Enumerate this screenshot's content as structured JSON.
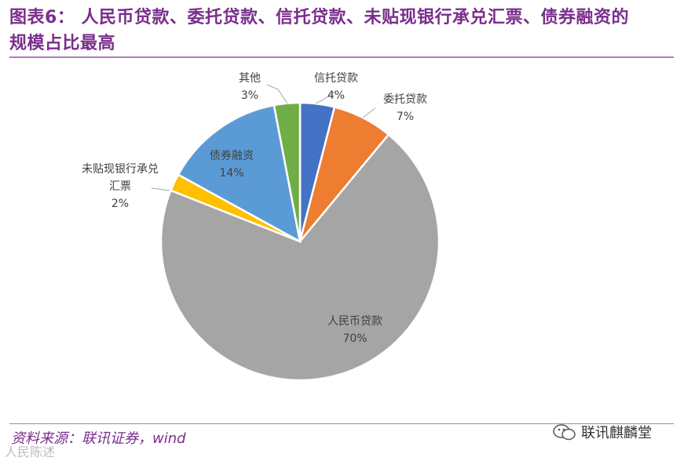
{
  "header": {
    "title_line1": "图表6： 人民币贷款、委托贷款、信托贷款、未贴现银行承兑汇票、债券融资的",
    "title_line2": "规模占比最高"
  },
  "footer": {
    "source": "资料来源：联讯证券，wind",
    "wechat_account": "联讯麒麟堂",
    "watermark": "人民陈述"
  },
  "chart_data": {
    "type": "pie",
    "title": "",
    "start_angle_deg": 0,
    "direction": "clockwise",
    "slices": [
      {
        "name": "信托贷款",
        "value": 4,
        "label": "4%",
        "color": "#4472c4",
        "label_lines": [
          "信托贷款",
          "4%"
        ]
      },
      {
        "name": "委托贷款",
        "value": 7,
        "label": "7%",
        "color": "#ed7d31",
        "label_lines": [
          "委托贷款",
          "7%"
        ]
      },
      {
        "name": "人民币贷款",
        "value": 70,
        "label": "70%",
        "color": "#a5a5a5",
        "label_lines": [
          "人民币贷款",
          "70%"
        ]
      },
      {
        "name": "未贴现银行承兑汇票",
        "value": 2,
        "label": "2%",
        "color": "#ffc000",
        "label_lines": [
          "未贴现银行承兑",
          "汇票",
          "2%"
        ]
      },
      {
        "name": "债券融资",
        "value": 14,
        "label": "14%",
        "color": "#5b9bd5",
        "label_lines": [
          "债券融资",
          "14%"
        ]
      },
      {
        "name": "其他",
        "value": 3,
        "label": "3%",
        "color": "#70ad47",
        "label_lines": [
          "其他",
          "3%"
        ]
      }
    ]
  }
}
